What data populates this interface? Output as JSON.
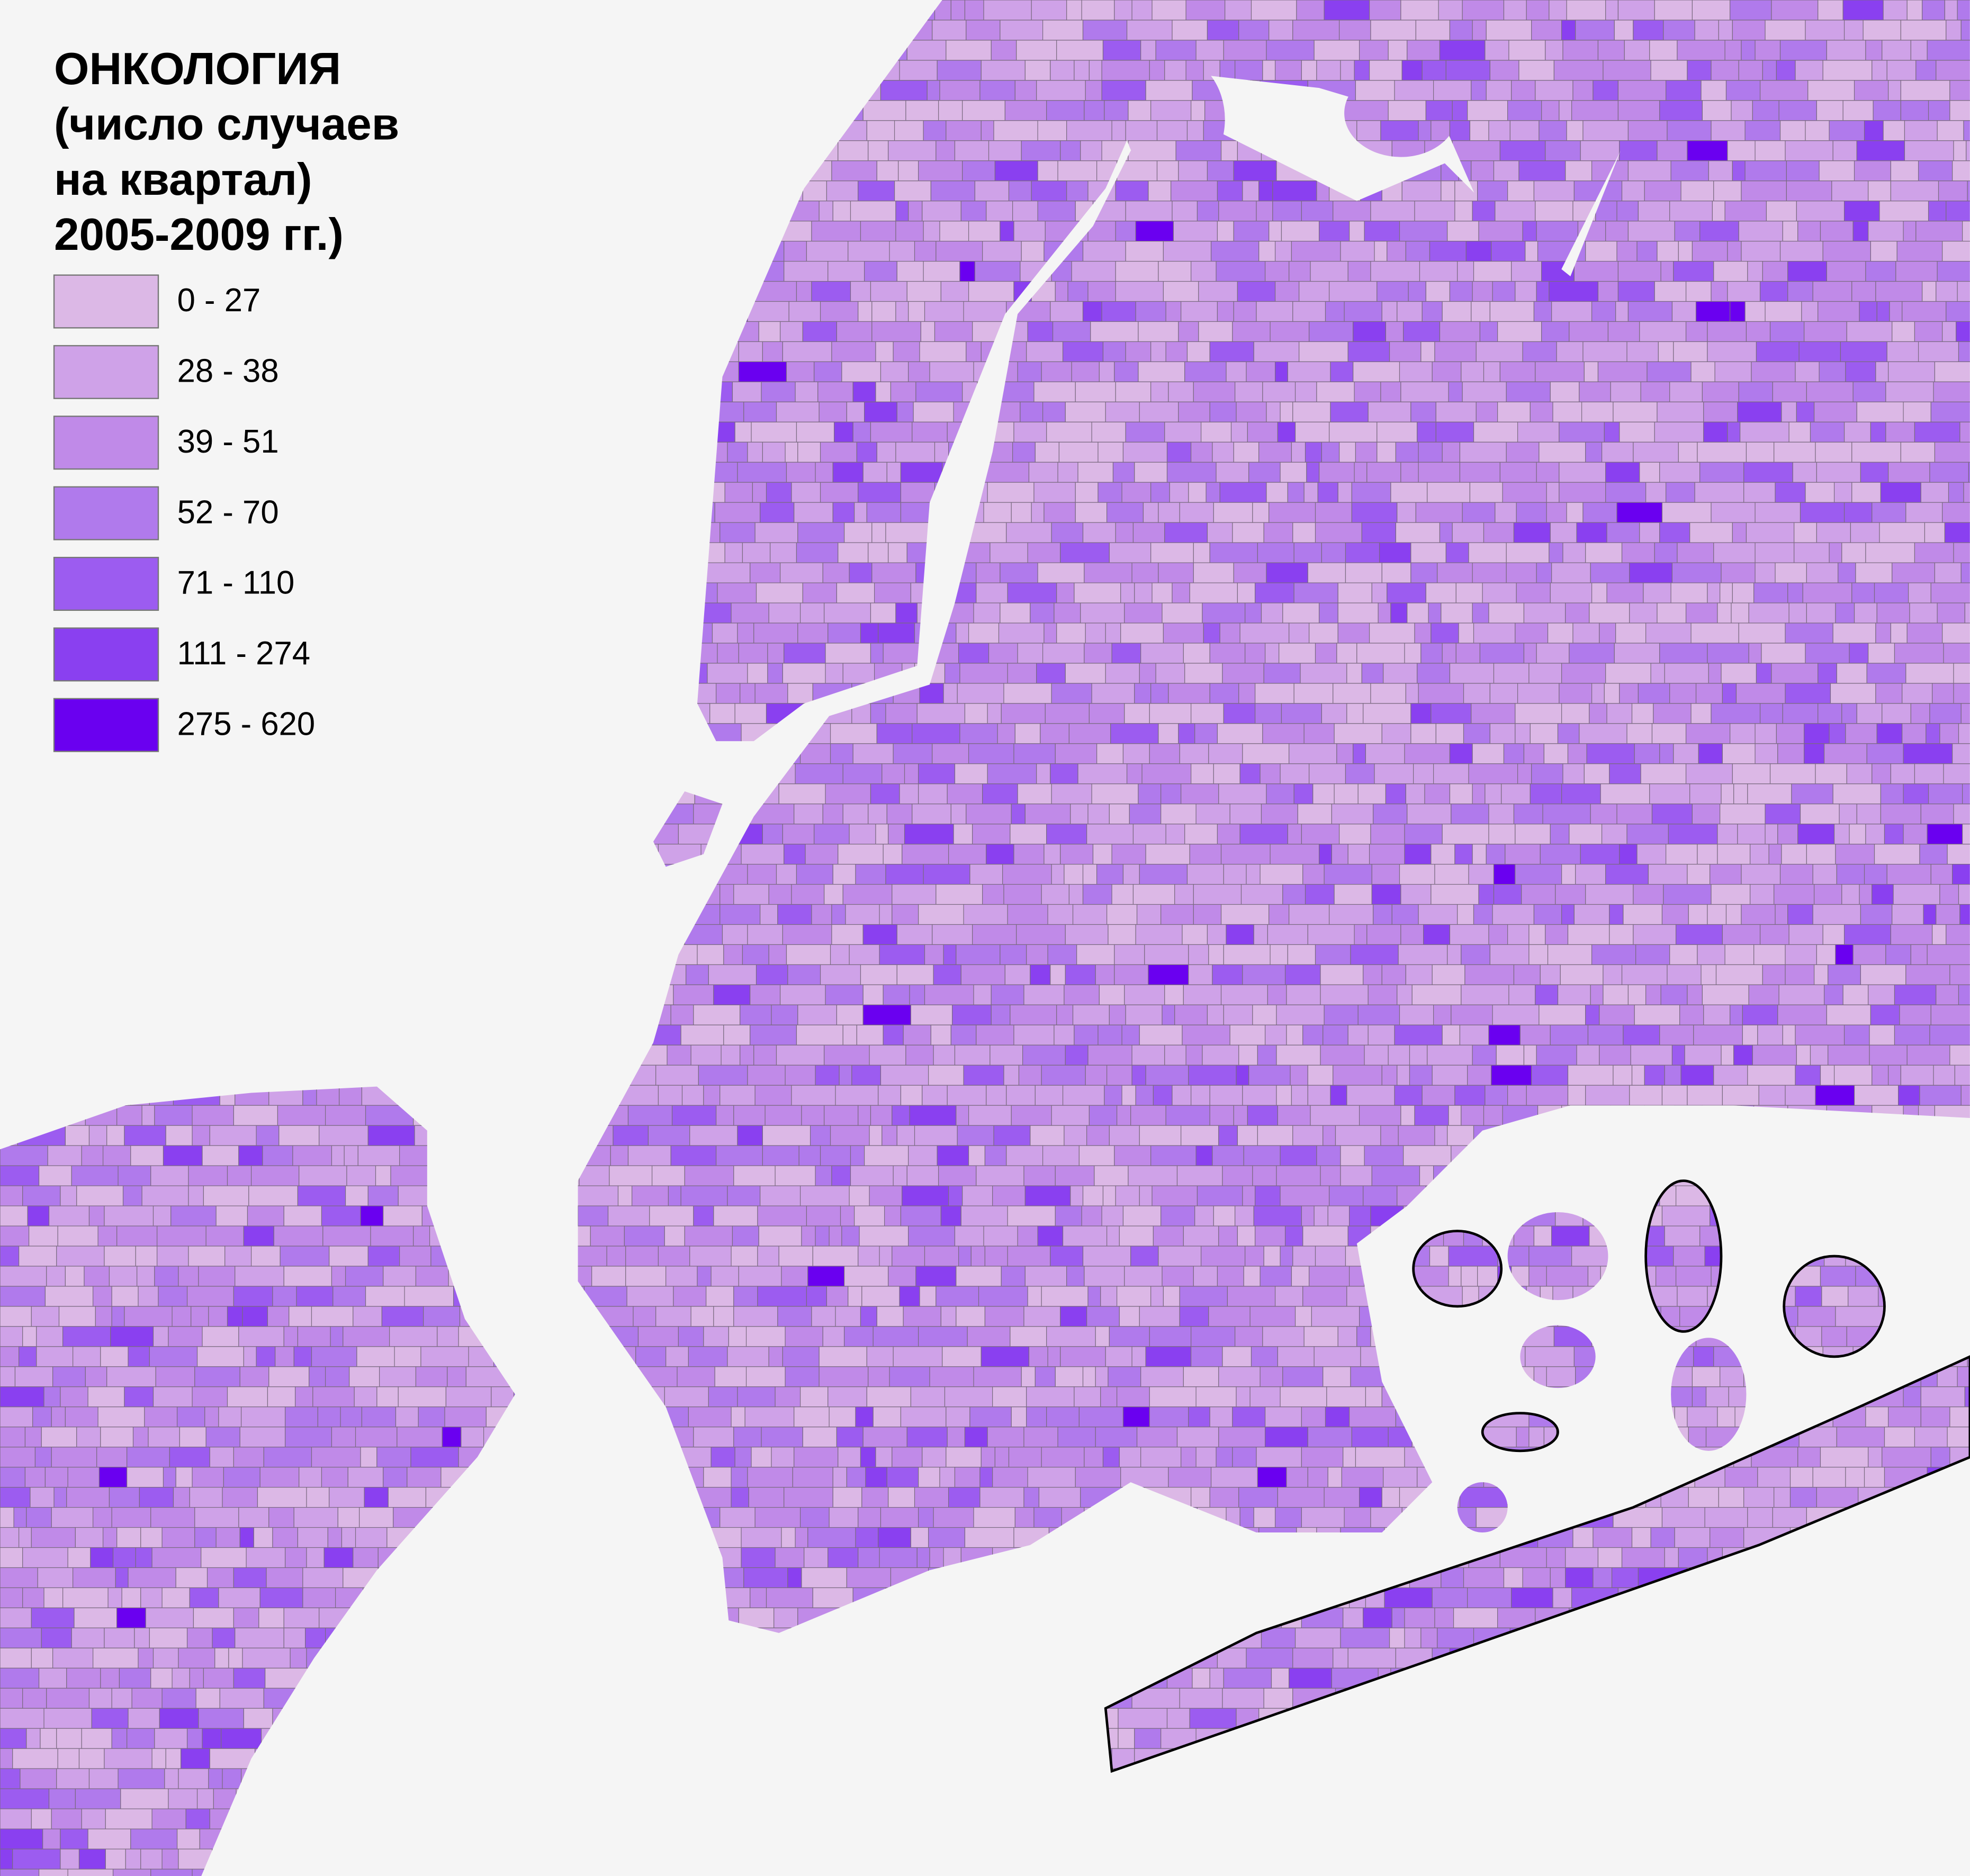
{
  "title_lines": [
    "ОНКОЛОГИЯ",
    "(число случаев",
    "на квартал)",
    "2005-2009 гг.)"
  ],
  "legend": {
    "items": [
      {
        "label": "0 - 27",
        "color": "#dcb8e6"
      },
      {
        "label": "28 - 38",
        "color": "#cfa2e8"
      },
      {
        "label": "39 - 51",
        "color": "#c08ae8"
      },
      {
        "label": "52 - 70",
        "color": "#b07aec"
      },
      {
        "label": "71 - 110",
        "color": "#9c5cf0"
      },
      {
        "label": "111 - 274",
        "color": "#8a40f0"
      },
      {
        "label": "275 - 620",
        "color": "#6a00f0"
      }
    ]
  }
}
